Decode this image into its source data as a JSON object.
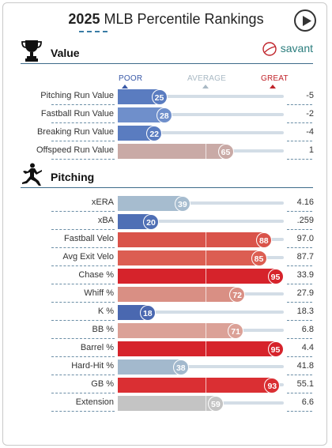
{
  "header": {
    "year": "2025",
    "title_rest": " MLB Percentile Rankings",
    "play_icon": "play-icon"
  },
  "scale": {
    "poor": "POOR",
    "average": "AVERAGE",
    "great": "GREAT",
    "poor_color": "#3a5aa8",
    "average_color": "#a9b9c4",
    "great_color": "#c0242b"
  },
  "value_section": {
    "title": "Value",
    "icon": "trophy-icon",
    "brand": "savant",
    "brand_icon": "baseball-swoosh-icon",
    "rows": [
      {
        "label": "Pitching Run Value",
        "percentile": 25,
        "value": "-5",
        "color": "#5a7cc0"
      },
      {
        "label": "Fastball Run Value",
        "percentile": 28,
        "value": "-2",
        "color": "#6f8fcb"
      },
      {
        "label": "Breaking Run Value",
        "percentile": 22,
        "value": "-4",
        "color": "#5a7cc0"
      },
      {
        "label": "Offspeed Run Value",
        "percentile": 65,
        "value": "1",
        "color": "#c9aaa6"
      }
    ]
  },
  "pitching_section": {
    "title": "Pitching",
    "icon": "pitcher-silhouette-icon",
    "rows": [
      {
        "label": "xERA",
        "percentile": 39,
        "value": "4.16",
        "color": "#a6bccf"
      },
      {
        "label": "xBA",
        "percentile": 20,
        "value": ".259",
        "color": "#4f6fb5"
      },
      {
        "label": "Fastball Velo",
        "percentile": 88,
        "value": "97.0",
        "color": "#d9534a"
      },
      {
        "label": "Avg Exit Velo",
        "percentile": 85,
        "value": "87.7",
        "color": "#dc5e52"
      },
      {
        "label": "Chase %",
        "percentile": 95,
        "value": "33.9",
        "color": "#d6232b"
      },
      {
        "label": "Whiff %",
        "percentile": 72,
        "value": "27.9",
        "color": "#d98f84"
      },
      {
        "label": "K %",
        "percentile": 18,
        "value": "18.3",
        "color": "#4a68b0"
      },
      {
        "label": "BB %",
        "percentile": 71,
        "value": "6.8",
        "color": "#dba197"
      },
      {
        "label": "Barrel %",
        "percentile": 95,
        "value": "4.4",
        "color": "#d6232b"
      },
      {
        "label": "Hard-Hit %",
        "percentile": 38,
        "value": "41.8",
        "color": "#a3b9cd"
      },
      {
        "label": "GB %",
        "percentile": 93,
        "value": "55.1",
        "color": "#da2f33"
      },
      {
        "label": "Extension",
        "percentile": 59,
        "value": "6.6",
        "color": "#c4c4c4"
      }
    ]
  }
}
